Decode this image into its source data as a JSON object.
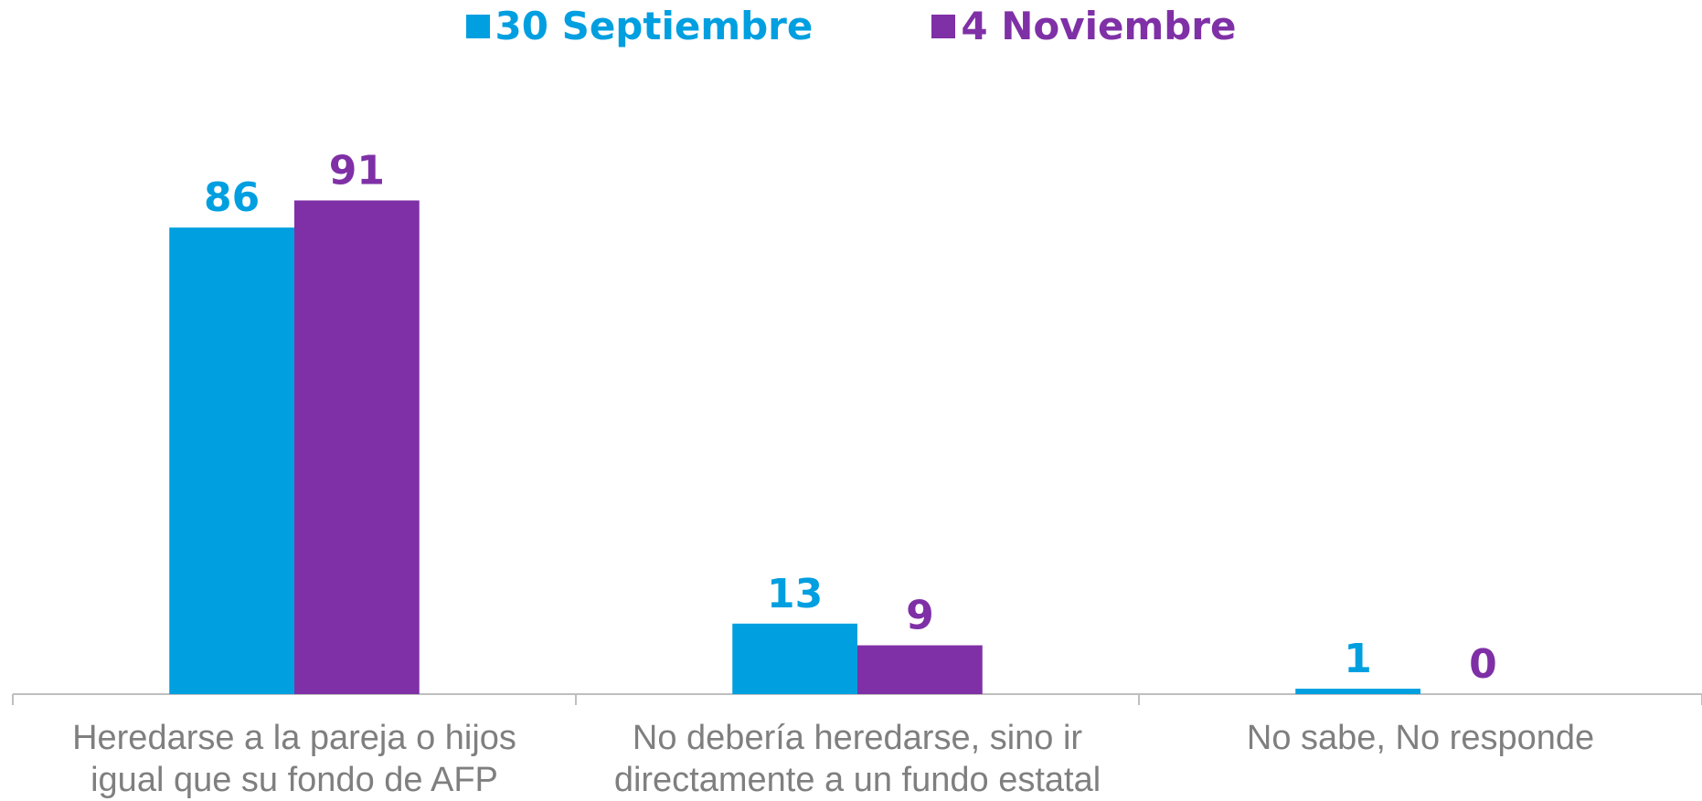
{
  "chart_data": {
    "type": "bar",
    "categories": [
      "Heredarse a la pareja o hijos igual que su fondo de AFP",
      "No debería heredarse, sino ir directamente a un fundo estatal",
      "No sabe, No responde"
    ],
    "series": [
      {
        "name": "30 Septiembre",
        "color": "#009fe0",
        "values": [
          86,
          13,
          1
        ]
      },
      {
        "name": "4 Noviembre",
        "color": "#7f30a6",
        "values": [
          91,
          9,
          0
        ]
      }
    ],
    "ylim": [
      0,
      100
    ],
    "legend": "top"
  }
}
